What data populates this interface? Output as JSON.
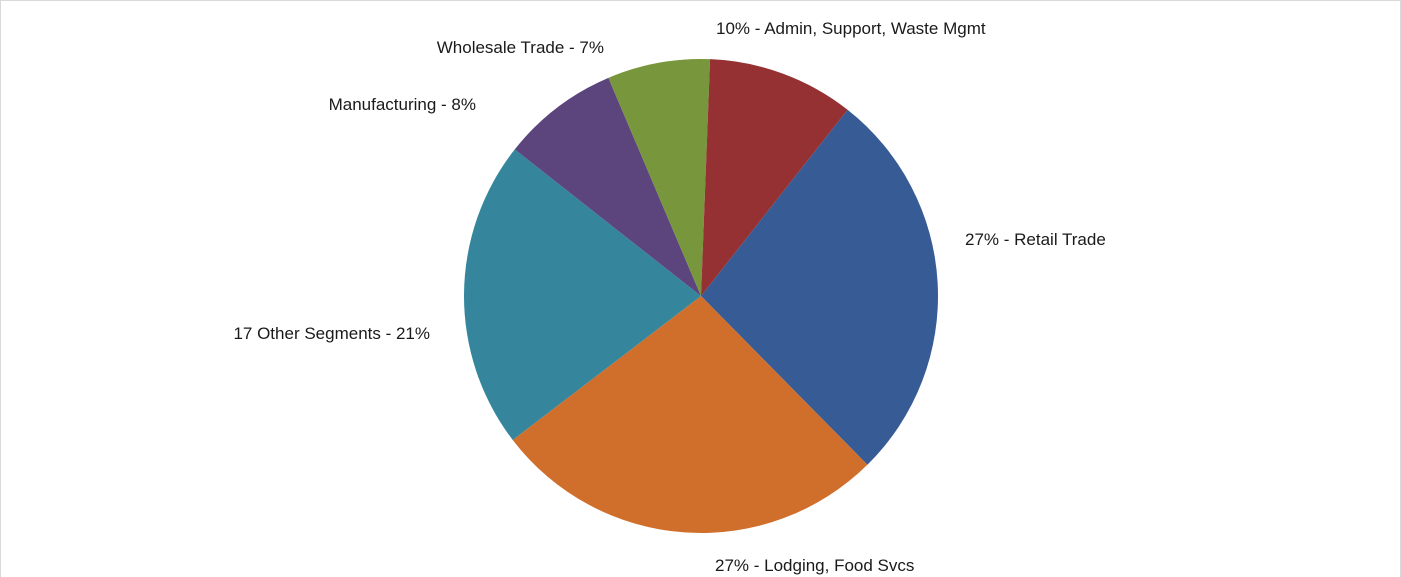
{
  "chart_data": {
    "type": "pie",
    "title": "",
    "slices": [
      {
        "label": "27% - Retail Trade",
        "category": "Retail Trade",
        "value": 27,
        "color": "#375B95"
      },
      {
        "label": "27% - Lodging, Food Svcs",
        "category": "Lodging, Food Svcs",
        "value": 27,
        "color": "#D06F2C"
      },
      {
        "label": "17 Other Segments - 21%",
        "category": "17 Other Segments",
        "value": 21,
        "color": "#35869C"
      },
      {
        "label": "Manufacturing - 8%",
        "category": "Manufacturing",
        "value": 8,
        "color": "#5C447D"
      },
      {
        "label": "Wholesale Trade - 7%",
        "category": "Wholesale Trade",
        "value": 7,
        "color": "#78963C"
      },
      {
        "label": "10% - Admin, Support, Waste Mgmt",
        "category": "Admin, Support, Waste Mgmt",
        "value": 10,
        "color": "#953033"
      }
    ],
    "start_direction": "clockwise from upper-right",
    "legend": "none (labels beside slices)"
  }
}
